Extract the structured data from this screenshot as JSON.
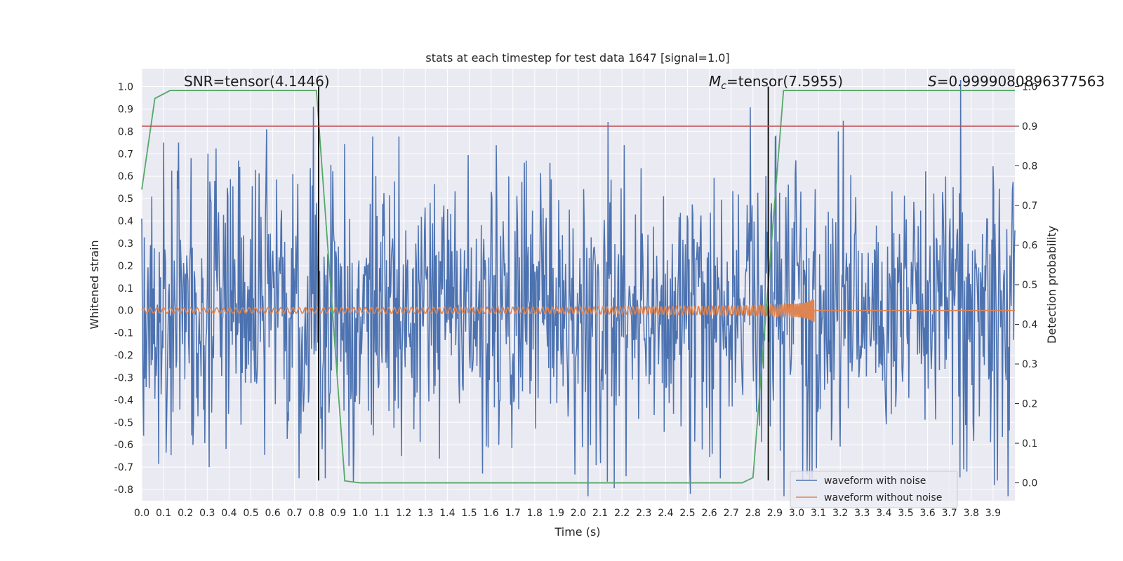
{
  "chart_data": {
    "type": "line",
    "title": "stats at each timestep for test data 1647 [signal=1.0]",
    "xlabel": "Time (s)",
    "ylabel_left": "Whitened strain",
    "ylabel_right": "Detection probability",
    "xlim": [
      0.0,
      4.0
    ],
    "ylim_left": [
      -0.85,
      1.08
    ],
    "ylim_right": [
      -0.045,
      1.045
    ],
    "x_ticks": [
      "0.0",
      "0.1",
      "0.2",
      "0.3",
      "0.4",
      "0.5",
      "0.6",
      "0.7",
      "0.8",
      "0.9",
      "1.0",
      "1.1",
      "1.2",
      "1.3",
      "1.4",
      "1.5",
      "1.6",
      "1.7",
      "1.8",
      "1.9",
      "2.0",
      "2.1",
      "2.2",
      "2.3",
      "2.4",
      "2.5",
      "2.6",
      "2.7",
      "2.8",
      "2.9",
      "3.0",
      "3.1",
      "3.2",
      "3.3",
      "3.4",
      "3.5",
      "3.6",
      "3.7",
      "3.8",
      "3.9"
    ],
    "y_ticks_left": [
      "-0.8",
      "-0.7",
      "-0.6",
      "-0.5",
      "-0.4",
      "-0.3",
      "-0.2",
      "-0.1",
      "0.0",
      "0.1",
      "0.2",
      "0.3",
      "0.4",
      "0.5",
      "0.6",
      "0.7",
      "0.8",
      "0.9",
      "1.0"
    ],
    "y_ticks_right": [
      "0.0",
      "0.1",
      "0.2",
      "0.3",
      "0.4",
      "0.5",
      "0.6",
      "0.7",
      "0.8",
      "0.9",
      "1.0"
    ],
    "grid": true,
    "annotations": {
      "snr": "SNR=tensor(4.1446)",
      "mc_symbol": "M",
      "mc_sub": "c",
      "mc_value": "=tensor(7.5955)",
      "s_symbol": "S",
      "s_value": "=0.9999080896377563"
    },
    "legend": {
      "position": "lower-right",
      "entries": [
        "waveform with noise",
        "waveform without noise"
      ]
    },
    "colors": {
      "noise": "#4c72b0",
      "clean": "#dd8452",
      "probability": "#55a868",
      "threshold": "#c44e52",
      "markers": "#000000",
      "background": "#eaeaf2",
      "grid": "#ffffff"
    },
    "threshold_right_axis": 0.9,
    "vertical_markers_x": [
      0.81,
      2.87
    ],
    "series": [
      {
        "name": "waveform with noise",
        "axis": "left",
        "kind": "noise",
        "x_range": [
          0.0,
          4.0
        ],
        "n_points": 1400,
        "amplitude": 0.3,
        "spikes": [
          [
            0.1,
            0.75
          ],
          [
            0.17,
            0.75
          ],
          [
            0.31,
            -0.7
          ],
          [
            0.72,
            -0.75
          ],
          [
            0.84,
            -0.75
          ],
          [
            2.65,
            -0.75
          ],
          [
            3.07,
            -0.75
          ],
          [
            3.19,
            0.8
          ],
          [
            3.75,
            1.03
          ],
          [
            3.78,
            -0.72
          ],
          [
            3.92,
            -0.76
          ]
        ]
      },
      {
        "name": "waveform without noise",
        "axis": "left",
        "kind": "chirp",
        "x_range": [
          0.0,
          4.0
        ],
        "merger_time": 3.08,
        "amp_start": 0.012,
        "amp_end": 0.13
      },
      {
        "name": "Detection probability",
        "axis": "right",
        "kind": "polyline",
        "x": [
          0.0,
          0.06,
          0.13,
          0.2,
          0.3,
          0.5,
          0.7,
          0.8,
          0.93,
          1.0,
          1.5,
          2.0,
          2.5,
          2.75,
          2.8,
          2.94,
          3.0,
          3.5,
          4.0
        ],
        "y": [
          0.74,
          0.97,
          0.99,
          0.99,
          0.99,
          0.99,
          0.99,
          0.99,
          0.005,
          0.0,
          0.0,
          0.0,
          0.0,
          0.0,
          0.013,
          0.99,
          0.99,
          0.99,
          0.99
        ]
      }
    ]
  }
}
